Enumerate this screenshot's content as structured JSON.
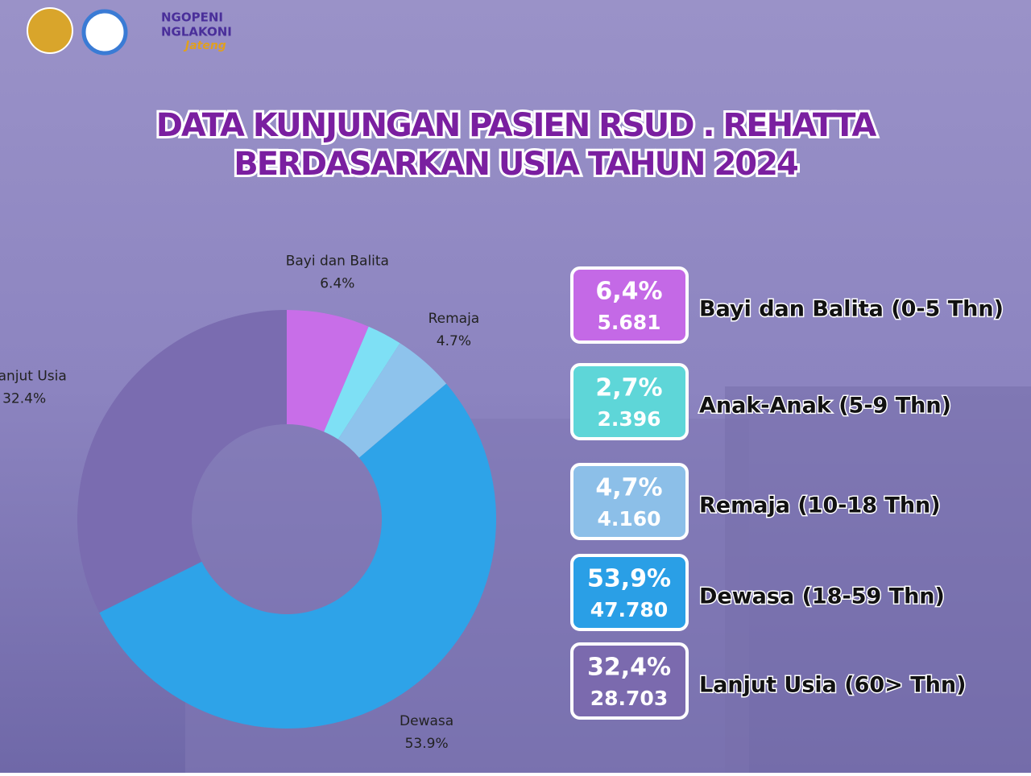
{
  "logo": {
    "line1": "NGOPENI",
    "line2": "NGLAKONI",
    "line3": "Jateng"
  },
  "chart_data": {
    "type": "pie",
    "donut": true,
    "title": [
      "DATA KUNJUNGAN PASIEN RSUD . REHATTA",
      "BERDASARKAN USIA  TAHUN 2024"
    ],
    "categories": [
      "Bayi dan Balita",
      null,
      "Remaja",
      "Dewasa",
      "Lanjut Usia"
    ],
    "values": [
      6.4,
      2.7,
      4.7,
      53.9,
      32.4
    ],
    "value_labels": [
      "6.4%",
      null,
      "4.7%",
      "53.9%",
      "32.4%"
    ],
    "colors": [
      "#c86ee8",
      "#7ee0f5",
      "#8ec3ec",
      "#2ea3e8",
      "#7a6cb0"
    ]
  },
  "cards": [
    {
      "percent": "6,4%",
      "count": "5.681",
      "label": "Bayi dan Balita (0-5 Thn)",
      "color": "#c469e6"
    },
    {
      "percent": "2,7%",
      "count": "2.396",
      "label": "Anak-Anak (5-9 Thn)",
      "color": "#5ed6d8"
    },
    {
      "percent": "4,7%",
      "count": "4.160",
      "label": "Remaja (10-18 Thn)",
      "color": "#8cbfe8"
    },
    {
      "percent": "53,9%",
      "count": "47.780",
      "label": "Dewasa (18-59 Thn)",
      "color": "#2a9fe6"
    },
    {
      "percent": "32,4%",
      "count": "28.703",
      "label": "Lanjut Usia (60> Thn)",
      "color": "#7b6aae"
    }
  ]
}
